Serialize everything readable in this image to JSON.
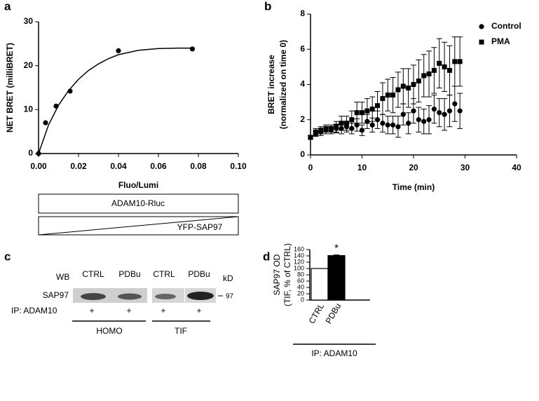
{
  "chart_data": [
    {
      "type": "scatter",
      "panel": "a",
      "xlabel": "Fluo/Lumi",
      "ylabel": "NET BRET (milliBRET)",
      "xlim": [
        0,
        0.1
      ],
      "xticks": [
        {
          "value": 0,
          "label": "0.00"
        },
        {
          "value": 0.02,
          "label": "0.02"
        },
        {
          "value": 0.04,
          "label": "0.04"
        },
        {
          "value": 0.06,
          "label": "0.06"
        },
        {
          "value": 0.08,
          "label": "0.08"
        },
        {
          "value": 0.1,
          "label": "0.10"
        }
      ],
      "ylim": [
        0,
        30
      ],
      "yticks": [
        0,
        10,
        20,
        30
      ],
      "series": [
        {
          "x": [
            0,
            0.0035,
            0.0088,
            0.0158,
            0.04,
            0.077
          ],
          "values": [
            0,
            7.0,
            10.8,
            14.2,
            23.4,
            23.8
          ],
          "color": "#000000",
          "marker": "circle"
        },
        {
          "x": [
            0,
            0.005,
            0.01,
            0.015,
            0.02,
            0.025,
            0.03,
            0.035,
            0.04,
            0.05,
            0.06,
            0.07,
            0.078
          ],
          "values": [
            0,
            6.5,
            11.0,
            14.3,
            16.9,
            18.9,
            20.4,
            21.6,
            22.5,
            23.5,
            23.9,
            24.0,
            24.0
          ],
          "color": "#000000",
          "marker": "line"
        }
      ]
    },
    {
      "type": "scatter",
      "panel": "b",
      "xlabel": "Time (min)",
      "ylabel": [
        "BRET increase",
        "(normalized on time 0)"
      ],
      "xlim": [
        0,
        40
      ],
      "xticks": [
        0,
        10,
        20,
        30,
        40
      ],
      "ylim": [
        0,
        8
      ],
      "yticks": [
        0,
        2,
        4,
        6,
        8
      ],
      "legend": "upper right",
      "x": [
        0,
        1,
        2,
        3,
        4,
        5,
        6,
        7,
        8,
        9,
        10,
        11,
        12,
        13,
        14,
        15,
        16,
        17,
        18,
        19,
        20,
        21,
        22,
        23,
        24,
        25,
        26,
        27,
        28,
        29
      ],
      "series": [
        {
          "name": "Control",
          "color": "#000000",
          "marker": "circle",
          "values": [
            1.0,
            1.2,
            1.3,
            1.4,
            1.4,
            1.5,
            1.5,
            1.6,
            1.5,
            1.7,
            1.4,
            1.9,
            1.7,
            2.0,
            1.8,
            1.7,
            1.7,
            1.6,
            2.3,
            1.8,
            2.5,
            2.0,
            1.9,
            2.0,
            2.6,
            2.4,
            2.3,
            2.5,
            2.9,
            2.5
          ],
          "errors": [
            0.1,
            0.15,
            0.2,
            0.2,
            0.2,
            0.25,
            0.3,
            0.3,
            0.3,
            0.35,
            0.3,
            0.4,
            0.4,
            0.5,
            0.5,
            0.5,
            0.5,
            0.6,
            0.6,
            0.6,
            0.7,
            0.7,
            0.7,
            0.8,
            0.8,
            0.8,
            0.9,
            0.9,
            1.0,
            1.0
          ]
        },
        {
          "name": "PMA",
          "color": "#000000",
          "marker": "square",
          "values": [
            1.0,
            1.3,
            1.4,
            1.5,
            1.5,
            1.6,
            1.8,
            1.8,
            2.0,
            2.4,
            2.4,
            2.5,
            2.6,
            2.8,
            3.2,
            3.4,
            3.4,
            3.7,
            3.9,
            3.8,
            4.0,
            4.2,
            4.5,
            4.6,
            4.8,
            5.2,
            5.0,
            4.8,
            5.3,
            5.3
          ],
          "errors": [
            0.1,
            0.2,
            0.2,
            0.2,
            0.2,
            0.3,
            0.4,
            0.4,
            0.5,
            0.6,
            0.6,
            0.7,
            0.7,
            0.8,
            0.9,
            0.9,
            1.0,
            1.0,
            1.0,
            1.1,
            1.1,
            1.2,
            1.2,
            1.3,
            1.3,
            1.4,
            1.4,
            1.4,
            1.4,
            1.4
          ]
        }
      ]
    },
    {
      "type": "bar",
      "panel": "d",
      "ylabel": [
        "SAP97 OD",
        "(TIF, % of CTRL)"
      ],
      "categories": [
        "CTRL",
        "PDBu"
      ],
      "values": [
        100,
        141
      ],
      "errors": [
        null,
        2
      ],
      "colors": [
        "#ffffff",
        "#000000"
      ],
      "ylim": [
        0,
        160
      ],
      "yticks": [
        0,
        20,
        40,
        60,
        80,
        100,
        120,
        140,
        160
      ],
      "annotation": "*",
      "group_label": "IP: ADAM10"
    }
  ],
  "diagram": {
    "top": "ADAM10-Rluc",
    "bottom": "YFP-SAP97"
  },
  "blot": {
    "panel": "c",
    "wb": "WB",
    "lanes": [
      "CTRL",
      "PDBu",
      "CTRL",
      "PDBu"
    ],
    "kd": "kD",
    "protein": "SAP97",
    "size": "97",
    "ip": "IP: ADAM10",
    "plus": [
      "+",
      "+",
      "+",
      "+"
    ],
    "groups": [
      "HOMO",
      "TIF"
    ]
  }
}
